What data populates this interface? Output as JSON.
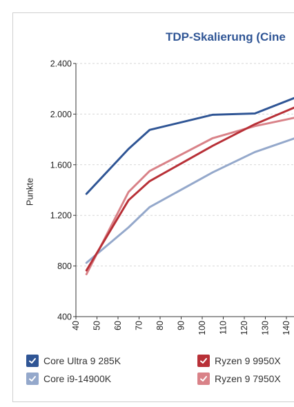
{
  "chart_data": {
    "type": "line",
    "title": "TDP-Skalierung (Cine",
    "ylabel": "Punkte",
    "xlabel": "",
    "xlim": [
      40,
      145
    ],
    "ylim": [
      400,
      2400
    ],
    "x_ticks": [
      "40",
      "50",
      "60",
      "70",
      "80",
      "90",
      "100",
      "110",
      "120",
      "130",
      "140"
    ],
    "y_ticks": [
      "400",
      "800",
      "1.200",
      "1.600",
      "2.000",
      "2.400"
    ],
    "grid": true,
    "legend_position": "bottom",
    "series": [
      {
        "name": "Core Ultra 9 285K",
        "color": "#2f5595",
        "x": [
          45,
          65,
          75,
          105,
          125,
          145
        ],
        "y": [
          1370,
          1725,
          1875,
          1995,
          2005,
          2135
        ]
      },
      {
        "name": "Core i9-14900K",
        "color": "#94a8cb",
        "x": [
          45,
          65,
          75,
          105,
          125,
          145
        ],
        "y": [
          825,
          1105,
          1265,
          1540,
          1700,
          1815
        ]
      },
      {
        "name": "Ryzen 9 9950X",
        "color": "#b83037",
        "x": [
          45,
          65,
          75,
          105,
          125,
          145
        ],
        "y": [
          765,
          1320,
          1470,
          1750,
          1920,
          2060
        ]
      },
      {
        "name": "Ryzen 9 7950X",
        "color": "#d98288",
        "x": [
          45,
          65,
          75,
          105,
          125,
          145
        ],
        "y": [
          735,
          1385,
          1550,
          1810,
          1905,
          1975
        ]
      }
    ]
  }
}
